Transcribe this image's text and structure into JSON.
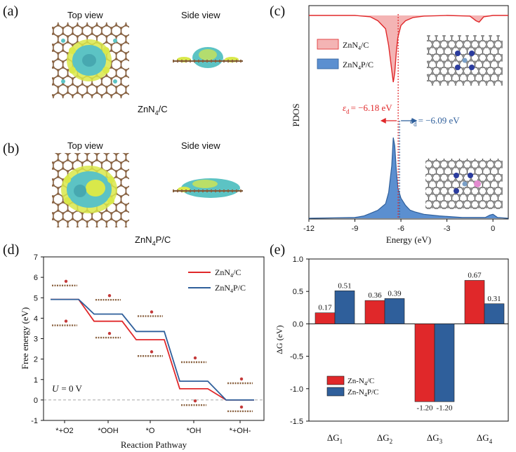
{
  "panels": {
    "a": {
      "label": "(a)",
      "top_view": "Top view",
      "side_view": "Side view",
      "material": "ZnN",
      "sub": "4",
      "suffix": "/C"
    },
    "b": {
      "label": "(b)",
      "top_view": "Top view",
      "side_view": "Side view",
      "material": "ZnN",
      "sub": "4",
      "suffix": "P/C"
    },
    "c": {
      "label": "(c)"
    },
    "d": {
      "label": "(d)"
    },
    "e": {
      "label": "(e)"
    }
  },
  "colors": {
    "red": "#e0282a",
    "blue": "#2f5f9b",
    "red_fill": "#f4b4b4",
    "blue_fill": "#5b8fd0"
  },
  "chart_data": [
    {
      "id": "c",
      "type": "area",
      "ylabel": "PDOS",
      "xlabel": "Energy (eV)",
      "xlim": [
        -12,
        1
      ],
      "xticks": [
        "-12",
        "-9",
        "-6",
        "-3",
        "0"
      ],
      "legend": [
        {
          "name": "ZnN",
          "sub": "4",
          "suffix": "/C"
        },
        {
          "name": "ZnN",
          "sub": "4",
          "suffix": "P/C"
        }
      ],
      "annotations": {
        "eps_red": {
          "text": "= −6.18 eV",
          "value": -6.18
        },
        "eps_blue": {
          "text": "= −6.09 eV",
          "value": -6.09
        }
      },
      "series": [
        {
          "name": "ZnN4/C",
          "x": [
            -12,
            -9,
            -8,
            -7.5,
            -7,
            -6.8,
            -6.6,
            -6.5,
            -6.4,
            -6.3,
            -6.2,
            -6.0,
            -5.7,
            -5.2,
            -4.5,
            -3,
            -1.5,
            -1.1,
            -0.9,
            -0.6,
            0,
            1
          ],
          "values": [
            0,
            0,
            0.02,
            0.08,
            0.2,
            0.45,
            0.82,
            1.0,
            0.86,
            0.55,
            0.33,
            0.15,
            0.08,
            0.03,
            0.01,
            0,
            0.01,
            0.08,
            0.1,
            0.02,
            0,
            0
          ]
        },
        {
          "name": "ZnN4P/C",
          "x": [
            -12,
            -9,
            -8.4,
            -8,
            -7.5,
            -7,
            -6.8,
            -6.6,
            -6.5,
            -6.4,
            -6.3,
            -6.2,
            -6.0,
            -5.7,
            -5.4,
            -5.1,
            -4.5,
            -3.5,
            -2,
            -0.5,
            -0.2,
            0,
            0.3,
            1
          ],
          "values": [
            0,
            0.01,
            0.03,
            0.06,
            0.1,
            0.18,
            0.32,
            0.65,
            1.0,
            0.9,
            0.6,
            0.38,
            0.25,
            0.16,
            0.1,
            0.08,
            0.05,
            0.03,
            0.01,
            0.01,
            0.04,
            0.05,
            0.01,
            0
          ]
        }
      ]
    },
    {
      "id": "d",
      "type": "line",
      "title": "",
      "xlabel": "Reaction Pathway",
      "ylabel": "Free energy (eV)",
      "ylim": [
        -1,
        7
      ],
      "yticks": [
        "-1",
        "0",
        "1",
        "2",
        "3",
        "4",
        "5",
        "6",
        "7"
      ],
      "categories": [
        "*+O2",
        "*OOH",
        "*O",
        "*OH",
        "*+OH-"
      ],
      "annotation": {
        "text": "= 0 V",
        "var": "U"
      },
      "series": [
        {
          "name": "ZnN4/C",
          "legend": {
            "name": "ZnN",
            "sub": "4",
            "suffix": "/C"
          },
          "values": [
            4.92,
            3.85,
            2.95,
            0.55,
            0
          ]
        },
        {
          "name": "ZnN4P/C",
          "legend": {
            "name": "ZnN",
            "sub": "4",
            "suffix": "P/C"
          },
          "values": [
            4.92,
            4.2,
            3.35,
            0.92,
            0
          ]
        }
      ]
    },
    {
      "id": "e",
      "type": "bar",
      "ylabel": "ΔG (eV)",
      "ylim": [
        -1.5,
        1.0
      ],
      "yticks": [
        "-1.5",
        "-1.0",
        "-0.5",
        "0.0",
        "0.5",
        "1.0"
      ],
      "categories": [
        {
          "main": "ΔG",
          "sub": "1"
        },
        {
          "main": "ΔG",
          "sub": "2"
        },
        {
          "main": "ΔG",
          "sub": "3"
        },
        {
          "main": "ΔG",
          "sub": "4"
        }
      ],
      "series": [
        {
          "name": "Zn-N4/C",
          "legend": {
            "name": "Zn-N",
            "sub": "4",
            "suffix": "/C"
          },
          "values": [
            0.17,
            0.36,
            -1.2,
            0.67
          ],
          "labels": [
            "0.17",
            "0.36",
            "-1.20",
            "0.67"
          ]
        },
        {
          "name": "Zn-N4P/C",
          "legend": {
            "name": "Zn-N",
            "sub": "4",
            "suffix": "P/C"
          },
          "values": [
            0.51,
            0.39,
            -1.2,
            0.31
          ],
          "labels": [
            "0.51",
            "0.39",
            "-1.20",
            "0.31"
          ]
        }
      ]
    }
  ]
}
